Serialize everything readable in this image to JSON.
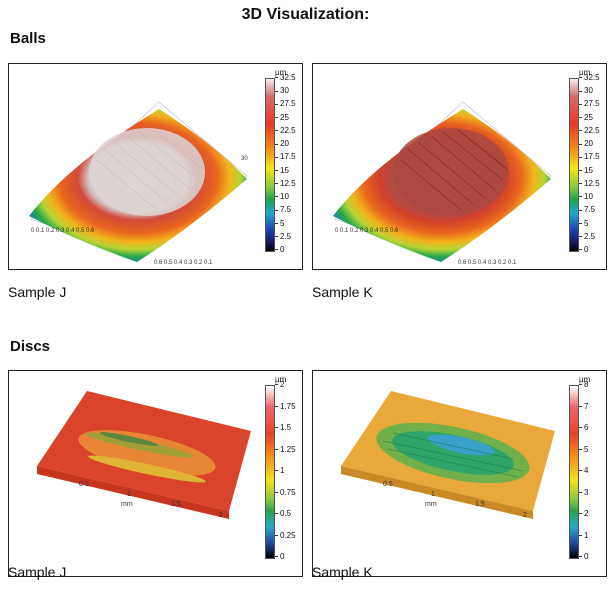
{
  "header": {
    "title": "3D Visualization:"
  },
  "sections": {
    "balls": "Balls",
    "discs": "Discs"
  },
  "captions": {
    "ball_j": "Sample J",
    "ball_k": "Sample K",
    "disc_j": "Sample J",
    "disc_k": "Sample K"
  },
  "colorbars": {
    "unit": "µm",
    "balls": [
      "32.5",
      "30",
      "27.5",
      "25",
      "22.5",
      "20",
      "17.5",
      "15",
      "12.5",
      "10",
      "7.5",
      "5",
      "2.5",
      "0"
    ],
    "disc_j": [
      "2",
      "1.75",
      "1.5",
      "1.25",
      "1",
      "0.75",
      "0.5",
      "0.25",
      "0"
    ],
    "disc_k": [
      "8",
      "7",
      "6",
      "5",
      "4",
      "3",
      "2",
      "1",
      "0"
    ]
  },
  "axes": {
    "mm": "mm",
    "ball_ticks": [
      "0",
      "0.1",
      "0.2",
      "0.3",
      "0.4",
      "0.5",
      "0.6",
      "0.7",
      "0.8"
    ],
    "ball_z": [
      "30",
      "20",
      "10",
      "0"
    ],
    "disc_x": [
      "0.5",
      "1",
      "1.5",
      "2"
    ],
    "disc_y": [
      "0.2",
      "0.4",
      "0.6",
      "0.8"
    ],
    "disc_z": [
      "2",
      "0"
    ]
  },
  "colors": {
    "red": "#e33a25",
    "orange": "#f08a1c",
    "yellow": "#f5e31c",
    "green": "#1fa34a",
    "blue": "#1e3fae",
    "disc_k_base": "#e8a93a"
  }
}
